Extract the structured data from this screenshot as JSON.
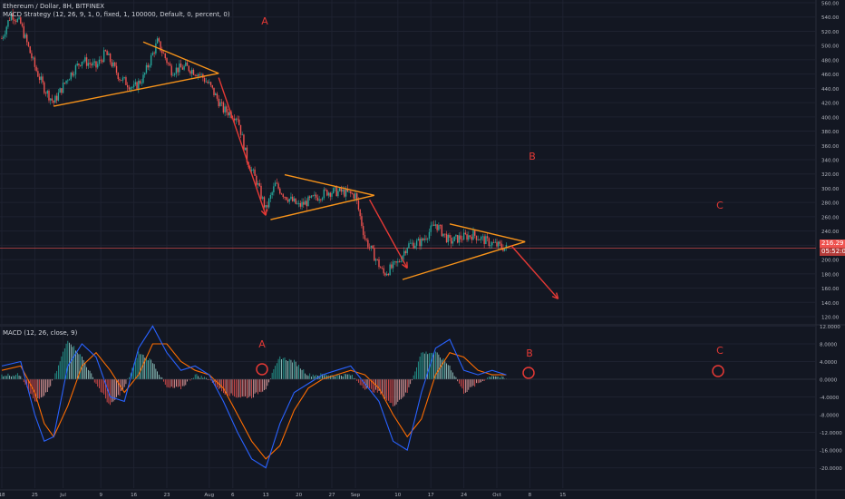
{
  "legend": {
    "symbol": "Ethereum / Dollar, 8H, BITFINEX",
    "strategy": "MACD Strategy (12, 26, 9, 1, 0, fixed, 1, 100000, Default, 0, percent, 0)",
    "macd": "MACD (12, 26, close, 9)"
  },
  "price_tags": {
    "price": "216.29",
    "countdown": "05:52:03"
  },
  "colors": {
    "background": "#131722",
    "grid": "#1e2230",
    "up": "#26a69a",
    "down": "#ef5350",
    "pattern": "#f7931a",
    "arrow": "#e53935",
    "macd_line": "#2962ff",
    "signal_line": "#ff6d00",
    "price_line": "#ef5350"
  },
  "annotations": [
    {
      "text": "A",
      "panel": "price"
    },
    {
      "text": "B",
      "panel": "price"
    },
    {
      "text": "C",
      "panel": "price"
    },
    {
      "text": "A",
      "panel": "macd"
    },
    {
      "text": "B",
      "panel": "macd"
    },
    {
      "text": "C",
      "panel": "macd"
    }
  ],
  "chart_data": [
    {
      "type": "line",
      "title": "Ethereum / Dollar, 8H, BITFINEX",
      "chart_style": "candlestick",
      "ylim": [
        120,
        560
      ],
      "y_ticks": [
        "120.00",
        "140.00",
        "160.00",
        "180.00",
        "200.00",
        "220.00",
        "240.00",
        "260.00",
        "280.00",
        "300.00",
        "320.00",
        "340.00",
        "360.00",
        "380.00",
        "400.00",
        "420.00",
        "440.00",
        "460.00",
        "480.00",
        "500.00",
        "520.00",
        "540.00",
        "560.00"
      ],
      "x_ticks": [
        "18",
        "25",
        "Jul",
        "9",
        "16",
        "23",
        "Aug",
        "6",
        "13",
        "20",
        "27",
        "Sep",
        "10",
        "17",
        "24",
        "Oct",
        "8",
        "15"
      ],
      "series": [
        {
          "name": "close",
          "x": [
            "Jun 18",
            "Jun 20",
            "Jun 22",
            "Jun 25",
            "Jun 27",
            "Jun 29",
            "Jul 2",
            "Jul 5",
            "Jul 8",
            "Jul 10",
            "Jul 13",
            "Jul 16",
            "Jul 18",
            "Jul 21",
            "Jul 24",
            "Jul 27",
            "Jul 30",
            "Aug 1",
            "Aug 4",
            "Aug 7",
            "Aug 9",
            "Aug 11",
            "Aug 13",
            "Aug 15",
            "Aug 17",
            "Aug 20",
            "Aug 23",
            "Aug 26",
            "Aug 29",
            "Sep 1",
            "Sep 3",
            "Sep 5",
            "Sep 7",
            "Sep 10",
            "Sep 12",
            "Sep 15",
            "Sep 18",
            "Sep 21",
            "Sep 23",
            "Sep 26",
            "Sep 29",
            "Oct 1",
            "Oct 3"
          ],
          "values": [
            510,
            545,
            530,
            470,
            440,
            420,
            455,
            480,
            470,
            490,
            455,
            440,
            455,
            505,
            465,
            470,
            460,
            445,
            410,
            400,
            340,
            310,
            270,
            305,
            290,
            275,
            285,
            295,
            295,
            290,
            230,
            205,
            180,
            195,
            220,
            225,
            250,
            225,
            230,
            235,
            225,
            220,
            216
          ]
        }
      ],
      "trendlines": [
        {
          "label": "A",
          "from": [
            "Jul 18",
            505
          ],
          "to": [
            "Aug 3",
            461
          ]
        },
        {
          "label": "A",
          "from": [
            "Jun 29",
            415
          ],
          "to": [
            "Aug 3",
            461
          ]
        },
        {
          "label": "B",
          "from": [
            "Aug 17",
            319
          ],
          "to": [
            "Sep 5",
            290
          ]
        },
        {
          "label": "B",
          "from": [
            "Aug 14",
            256
          ],
          "to": [
            "Sep 5",
            290
          ]
        },
        {
          "label": "C",
          "from": [
            "Sep 21",
            250
          ],
          "to": [
            "Oct 7",
            225
          ]
        },
        {
          "label": "C",
          "from": [
            "Sep 11",
            172
          ],
          "to": [
            "Oct 7",
            225
          ]
        }
      ],
      "arrows": [
        {
          "from": [
            "Aug 3",
            455
          ],
          "to": [
            "Aug 13",
            262
          ]
        },
        {
          "from": [
            "Sep 4",
            284
          ],
          "to": [
            "Sep 12",
            188
          ]
        },
        {
          "from": [
            "Oct 4",
            220
          ],
          "to": [
            "Oct 14",
            145
          ]
        }
      ]
    },
    {
      "type": "bar",
      "title": "MACD (12, 26, close, 9)",
      "ylim": [
        -22,
        14
      ],
      "y_ticks": [
        "-20.0000",
        "-16.0000",
        "-12.0000",
        "-8.0000",
        "-4.0000",
        "0.0000",
        "4.0000",
        "8.0000",
        "12.0000"
      ],
      "series": [
        {
          "name": "MACD",
          "x": [
            "Jun 18",
            "Jun 22",
            "Jun 25",
            "Jun 27",
            "Jun 29",
            "Jul 2",
            "Jul 5",
            "Jul 8",
            "Jul 11",
            "Jul 14",
            "Jul 17",
            "Jul 20",
            "Jul 23",
            "Jul 26",
            "Jul 29",
            "Aug 1",
            "Aug 4",
            "Aug 7",
            "Aug 10",
            "Aug 13",
            "Aug 16",
            "Aug 19",
            "Aug 22",
            "Aug 25",
            "Aug 28",
            "Aug 31",
            "Sep 3",
            "Sep 6",
            "Sep 9",
            "Sep 12",
            "Sep 15",
            "Sep 18",
            "Sep 21",
            "Sep 24",
            "Sep 27",
            "Sep 30",
            "Oct 3"
          ],
          "values": [
            3,
            4,
            -8,
            -14,
            -13,
            3,
            8,
            5,
            -4,
            -5,
            7,
            12,
            6,
            2,
            3,
            1,
            -5,
            -12,
            -18,
            -20,
            -10,
            -3,
            -1,
            1,
            2,
            3,
            -1,
            -5,
            -14,
            -16,
            -3,
            7,
            9,
            2,
            1,
            2,
            1
          ]
        },
        {
          "name": "Signal",
          "x": [
            "Jun 18",
            "Jun 22",
            "Jun 25",
            "Jun 27",
            "Jun 29",
            "Jul 2",
            "Jul 5",
            "Jul 8",
            "Jul 11",
            "Jul 14",
            "Jul 17",
            "Jul 20",
            "Jul 23",
            "Jul 26",
            "Jul 29",
            "Aug 1",
            "Aug 4",
            "Aug 7",
            "Aug 10",
            "Aug 13",
            "Aug 16",
            "Aug 19",
            "Aug 22",
            "Aug 25",
            "Aug 28",
            "Aug 31",
            "Sep 3",
            "Sep 6",
            "Sep 9",
            "Sep 12",
            "Sep 15",
            "Sep 18",
            "Sep 21",
            "Sep 24",
            "Sep 27",
            "Sep 30",
            "Oct 3"
          ],
          "values": [
            2,
            3,
            -3,
            -10,
            -13,
            -6,
            3,
            6,
            2,
            -3,
            1,
            8,
            8,
            4,
            2,
            1,
            -2,
            -8,
            -14,
            -18,
            -15,
            -7,
            -2,
            0,
            1,
            2,
            1,
            -2,
            -8,
            -13,
            -9,
            1,
            6,
            5,
            2,
            1,
            1
          ]
        },
        {
          "name": "Histogram",
          "x": [
            "Jun 18",
            "Jun 22",
            "Jun 25",
            "Jun 27",
            "Jun 29",
            "Jul 2",
            "Jul 5",
            "Jul 8",
            "Jul 11",
            "Jul 14",
            "Jul 17",
            "Jul 20",
            "Jul 23",
            "Jul 26",
            "Jul 29",
            "Aug 1",
            "Aug 4",
            "Aug 7",
            "Aug 10",
            "Aug 13",
            "Aug 16",
            "Aug 19",
            "Aug 22",
            "Aug 25",
            "Aug 28",
            "Aug 31",
            "Sep 3",
            "Sep 6",
            "Sep 9",
            "Sep 12",
            "Sep 15",
            "Sep 18",
            "Sep 21",
            "Sep 24",
            "Sep 27",
            "Sep 30",
            "Oct 3"
          ],
          "values": [
            1,
            1,
            -5,
            -4,
            0,
            9,
            5,
            -1,
            -6,
            -2,
            6,
            4,
            -2,
            -2,
            1,
            0,
            -3,
            -4,
            -4,
            -2,
            5,
            4,
            1,
            1,
            1,
            1,
            -2,
            -3,
            -6,
            -3,
            6,
            6,
            3,
            -3,
            -1,
            1,
            0
          ]
        }
      ]
    }
  ]
}
